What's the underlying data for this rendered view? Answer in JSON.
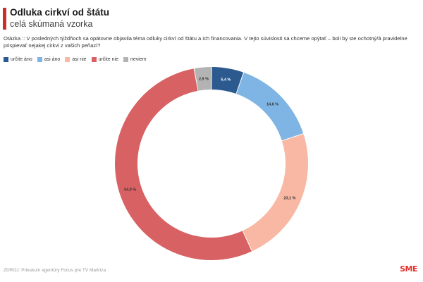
{
  "header": {
    "title": "Odluka cirkví od štátu",
    "subtitle": "celá skúmaná vzorka",
    "accent_color": "#c8302e"
  },
  "question": "Otázka :: V posledných týždňoch sa opätovne objavila téma odluky cirkví od štátu a ich financovania. V tejto súvislosti sa chceme opýtať – boli by ste ochotný/á pravidelne prispievať nejakej cirkvi z vašich peňazí?",
  "chart_data": {
    "type": "pie",
    "variant": "donut",
    "title": "Odluka cirkví od štátu",
    "subtitle": "celá skúmaná vzorka",
    "legend_position": "top-left",
    "categories": [
      "určite áno",
      "asi áno",
      "asi nie",
      "určite nie",
      "neviem"
    ],
    "values": [
      5.4,
      14.6,
      23.1,
      54.0,
      2.9
    ],
    "data_labels": [
      "5,4 %",
      "14,6 %",
      "23,1 %",
      "54,0 %",
      "2,9 %"
    ],
    "colors": [
      "#2c5a8f",
      "#7fb5e4",
      "#f8b8a3",
      "#d86163",
      "#b3b3b3"
    ]
  },
  "footer": {
    "source": "ZDROJ: Prieskum agentúry Focus pre TV Markíza",
    "logo": "SME",
    "logo_color": "#e4312c"
  }
}
